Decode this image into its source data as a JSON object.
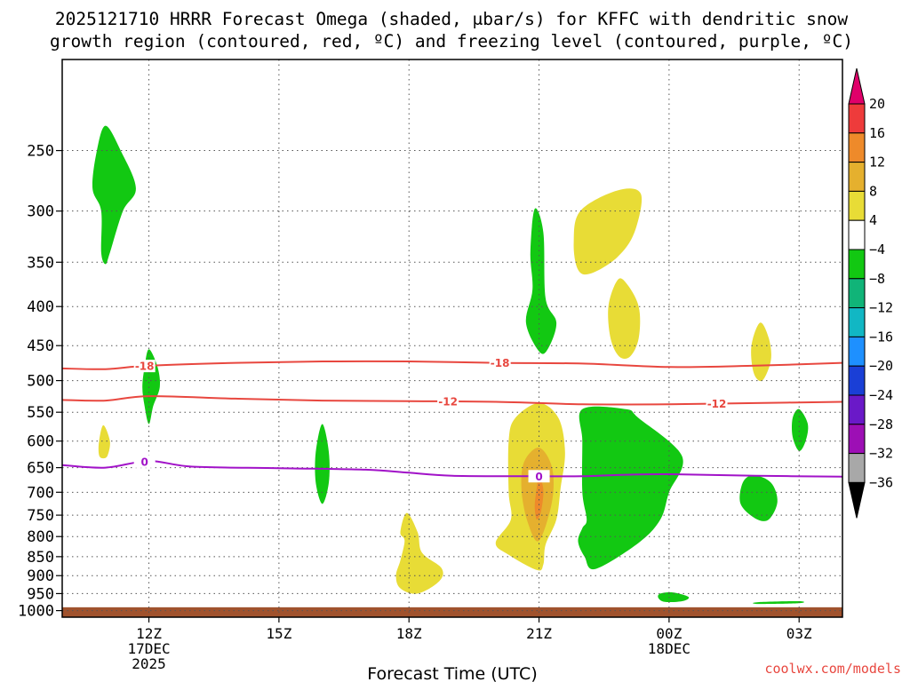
{
  "chart_data": {
    "type": "time-height-contour",
    "title_line1": "2025121710 HRRR Forecast Omega (shaded, μbar/s) for KFFC with dendritic snow",
    "title_line2": "growth region (contoured, red, ºC) and freezing level (contoured, purple, ºC)",
    "xlabel": "Forecast Time (UTC)",
    "credit": "coolwx.com/models",
    "x_range_hours": [
      10,
      28
    ],
    "y_axis": {
      "type": "pressure",
      "units": "hPa",
      "range": [
        1020,
        190
      ],
      "ticks": [
        250,
        300,
        350,
        400,
        450,
        500,
        550,
        600,
        650,
        700,
        750,
        800,
        850,
        900,
        950,
        1000
      ]
    },
    "x_ticks": [
      {
        "hour": 12,
        "label": "12Z",
        "sub1": "17DEC",
        "sub2": "2025"
      },
      {
        "hour": 15,
        "label": "15Z",
        "sub1": "",
        "sub2": ""
      },
      {
        "hour": 18,
        "label": "18Z",
        "sub1": "",
        "sub2": ""
      },
      {
        "hour": 21,
        "label": "21Z",
        "sub1": "",
        "sub2": ""
      },
      {
        "hour": 24,
        "label": "00Z",
        "sub1": "18DEC",
        "sub2": ""
      },
      {
        "hour": 27,
        "label": "03Z",
        "sub1": "",
        "sub2": ""
      }
    ],
    "colorbar": {
      "levels": [
        "20",
        "16",
        "12",
        "8",
        "4",
        "−4",
        "−8",
        "−12",
        "−16",
        "−20",
        "−24",
        "−28",
        "−32",
        "−36"
      ],
      "colors": [
        "#e0006a",
        "#ee3b3b",
        "#ee8a2a",
        "#e5b02e",
        "#e8dc36",
        "#ffffff",
        "#12c812",
        "#10b478",
        "#11b7c4",
        "#1e90ff",
        "#1a3fd6",
        "#6a19c8",
        "#9d0fb5",
        "#a8a8a8",
        "#000000"
      ]
    },
    "ground_pressure_hPa": 990,
    "contours": [
      {
        "name": "-18",
        "color": "#e8473f",
        "label_hours": [
          11.9,
          20.1
        ],
        "points": [
          [
            10,
            482
          ],
          [
            11,
            483
          ],
          [
            12,
            478
          ],
          [
            14,
            474
          ],
          [
            16,
            472
          ],
          [
            18,
            472
          ],
          [
            20,
            474
          ],
          [
            22,
            475
          ],
          [
            24,
            480
          ],
          [
            26,
            478
          ],
          [
            28,
            474
          ]
        ]
      },
      {
        "name": "-12",
        "color": "#e8473f",
        "label_hours": [
          18.9,
          25.1
        ],
        "points": [
          [
            10,
            530
          ],
          [
            11,
            531
          ],
          [
            12,
            524
          ],
          [
            14,
            528
          ],
          [
            16,
            531
          ],
          [
            18,
            532
          ],
          [
            20,
            533
          ],
          [
            22,
            537
          ],
          [
            24,
            537
          ],
          [
            26,
            535
          ],
          [
            28,
            533
          ]
        ]
      },
      {
        "name": "0",
        "color": "#a112c8",
        "label_hours": [
          11.9,
          21.0
        ],
        "points": [
          [
            10,
            645
          ],
          [
            11,
            650
          ],
          [
            12,
            637
          ],
          [
            13,
            648
          ],
          [
            15,
            651
          ],
          [
            17,
            654
          ],
          [
            18,
            660
          ],
          [
            19,
            666
          ],
          [
            21,
            667
          ],
          [
            22,
            667
          ],
          [
            23,
            664
          ],
          [
            24,
            663
          ],
          [
            26,
            666
          ],
          [
            28,
            668
          ]
        ]
      }
    ],
    "shaded_regions": [
      {
        "level": "−4 to −8",
        "color": "#12c812",
        "points": [
          [
            11.0,
            232
          ],
          [
            11.35,
            250
          ],
          [
            11.7,
            280
          ],
          [
            11.4,
            300
          ],
          [
            11.1,
            340
          ],
          [
            11.0,
            352
          ],
          [
            10.9,
            340
          ],
          [
            10.9,
            300
          ],
          [
            10.7,
            280
          ],
          [
            10.8,
            250
          ]
        ]
      },
      {
        "level": "−4 to −8",
        "color": "#12c812",
        "points": [
          [
            12.0,
            455
          ],
          [
            12.2,
            480
          ],
          [
            12.25,
            510
          ],
          [
            12.1,
            540
          ],
          [
            12.0,
            570
          ],
          [
            11.9,
            540
          ],
          [
            11.85,
            510
          ],
          [
            11.9,
            480
          ]
        ]
      },
      {
        "level": "4 to 8",
        "color": "#e8dc36",
        "points": [
          [
            10.95,
            572
          ],
          [
            11.1,
            600
          ],
          [
            11.05,
            626
          ],
          [
            10.95,
            632
          ],
          [
            10.85,
            626
          ],
          [
            10.85,
            600
          ]
        ]
      },
      {
        "level": "−4 to −8",
        "color": "#12c812",
        "points": [
          [
            16.0,
            570
          ],
          [
            16.15,
            620
          ],
          [
            16.15,
            680
          ],
          [
            16.0,
            725
          ],
          [
            15.85,
            680
          ],
          [
            15.85,
            620
          ]
        ]
      },
      {
        "level": "4 to 8",
        "color": "#e8dc36",
        "points": [
          [
            17.95,
            745
          ],
          [
            18.2,
            790
          ],
          [
            18.3,
            840
          ],
          [
            18.75,
            880
          ],
          [
            18.7,
            915
          ],
          [
            18.2,
            950
          ],
          [
            17.8,
            935
          ],
          [
            17.7,
            900
          ],
          [
            17.8,
            860
          ],
          [
            17.9,
            810
          ],
          [
            17.8,
            790
          ]
        ]
      },
      {
        "level": "−4 to −8",
        "color": "#12c812",
        "points": [
          [
            20.9,
            298
          ],
          [
            21.1,
            320
          ],
          [
            21.15,
            390
          ],
          [
            21.4,
            420
          ],
          [
            21.2,
            455
          ],
          [
            21.0,
            458
          ],
          [
            20.7,
            420
          ],
          [
            20.85,
            380
          ],
          [
            20.8,
            340
          ]
        ]
      },
      {
        "level": "4 to 8",
        "color": "#e8dc36",
        "points": [
          [
            21.95,
            300
          ],
          [
            22.8,
            282
          ],
          [
            23.35,
            285
          ],
          [
            23.2,
            320
          ],
          [
            22.8,
            345
          ],
          [
            22.2,
            362
          ],
          [
            21.9,
            358
          ],
          [
            21.8,
            330
          ]
        ]
      },
      {
        "level": "4 to 8",
        "color": "#e8dc36",
        "points": [
          [
            22.8,
            370
          ],
          [
            23.0,
            372
          ],
          [
            23.3,
            400
          ],
          [
            23.3,
            440
          ],
          [
            23.1,
            465
          ],
          [
            22.85,
            465
          ],
          [
            22.65,
            440
          ],
          [
            22.6,
            400
          ]
        ]
      },
      {
        "level": "4 to 8",
        "color": "#e8dc36",
        "points": [
          [
            21.0,
            535
          ],
          [
            21.45,
            560
          ],
          [
            21.6,
            620
          ],
          [
            21.5,
            690
          ],
          [
            21.4,
            760
          ],
          [
            21.15,
            820
          ],
          [
            21.1,
            870
          ],
          [
            20.95,
            885
          ],
          [
            20.3,
            845
          ],
          [
            20.0,
            815
          ],
          [
            20.35,
            760
          ],
          [
            20.3,
            700
          ],
          [
            20.3,
            600
          ],
          [
            20.45,
            560
          ]
        ]
      },
      {
        "level": "8 to 12",
        "color": "#e5b02e",
        "points": [
          [
            21.0,
            612
          ],
          [
            21.3,
            650
          ],
          [
            21.3,
            720
          ],
          [
            21.0,
            810
          ],
          [
            20.75,
            770
          ],
          [
            20.6,
            700
          ],
          [
            20.65,
            640
          ]
        ]
      },
      {
        "level": "12 to 16",
        "color": "#ee8a2a",
        "points": [
          [
            21.0,
            665
          ],
          [
            21.1,
            695
          ],
          [
            21.05,
            740
          ],
          [
            20.95,
            760
          ],
          [
            20.9,
            730
          ],
          [
            20.95,
            690
          ]
        ]
      },
      {
        "level": "−4 to −8",
        "color": "#12c812",
        "points": [
          [
            23.0,
            545
          ],
          [
            23.3,
            560
          ],
          [
            24.3,
            628
          ],
          [
            24.0,
            700
          ],
          [
            23.8,
            760
          ],
          [
            23.3,
            815
          ],
          [
            22.3,
            882
          ],
          [
            22.05,
            850
          ],
          [
            21.9,
            812
          ],
          [
            22.0,
            780
          ],
          [
            22.1,
            760
          ],
          [
            22.0,
            700
          ],
          [
            22.0,
            600
          ],
          [
            22.0,
            545
          ]
        ]
      },
      {
        "level": "4 to 8",
        "color": "#e8dc36",
        "points": [
          [
            26.1,
            420
          ],
          [
            26.3,
            440
          ],
          [
            26.35,
            470
          ],
          [
            26.15,
            500
          ],
          [
            25.95,
            488
          ],
          [
            25.9,
            450
          ]
        ]
      },
      {
        "level": "−4 to −8",
        "color": "#12c812",
        "points": [
          [
            25.95,
            665
          ],
          [
            26.35,
            680
          ],
          [
            26.5,
            720
          ],
          [
            26.3,
            760
          ],
          [
            26.0,
            758
          ],
          [
            25.65,
            725
          ],
          [
            25.7,
            680
          ]
        ]
      },
      {
        "level": "−4 to −8",
        "color": "#12c812",
        "points": [
          [
            27.0,
            545
          ],
          [
            27.2,
            570
          ],
          [
            27.15,
            600
          ],
          [
            27.0,
            618
          ],
          [
            26.85,
            592
          ],
          [
            26.85,
            560
          ]
        ]
      },
      {
        "level": "−4 to −8",
        "color": "#12c812",
        "points": [
          [
            23.8,
            950
          ],
          [
            24.1,
            947
          ],
          [
            24.45,
            960
          ],
          [
            24.3,
            972
          ],
          [
            23.9,
            974
          ],
          [
            23.75,
            962
          ]
        ]
      },
      {
        "level": "−4 to −8",
        "color": "#12c812",
        "points": [
          [
            26.05,
            975
          ],
          [
            27.0,
            972
          ],
          [
            27.0,
            978
          ],
          [
            26.05,
            980
          ]
        ]
      }
    ]
  }
}
